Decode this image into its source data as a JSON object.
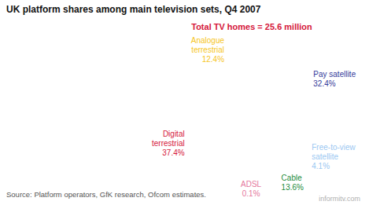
{
  "chart_data": {
    "type": "pie",
    "title": "UK platform shares among main television sets, Q4 2007",
    "subtitle": "Total TV homes = 25.6 million",
    "categories": [
      "Pay satellite",
      "Free-to-view satellite",
      "Cable",
      "ADSL",
      "Digital terrestrial",
      "Analogue terrestrial"
    ],
    "values": [
      32.4,
      4.1,
      13.6,
      0.1,
      37.4,
      12.4
    ],
    "value_labels": [
      "32.4%",
      "4.1%",
      "13.6%",
      "0.1%",
      "37.4%",
      "12.4%"
    ],
    "colors": [
      "#333a9a",
      "#9cc8f2",
      "#1c8b3b",
      "#e5799e",
      "#d5173b",
      "#f6c51c"
    ],
    "data_labels": true,
    "source": "Source: Platform operators, GfK research, Ofcom estimates.",
    "credit": "informitv.com"
  }
}
